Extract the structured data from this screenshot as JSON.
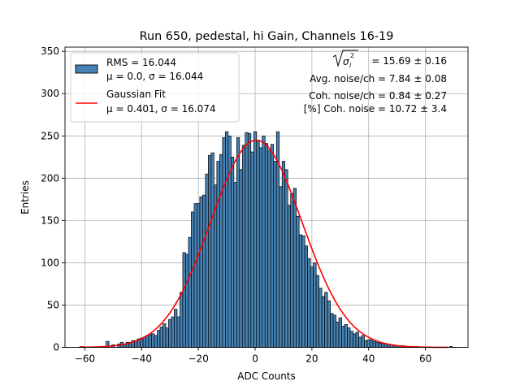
{
  "chart_data": {
    "type": "bar",
    "title": "Run 650, pedestal, hi Gain, Channels 16-19",
    "xlabel": "ADC Counts",
    "ylabel": "Entries",
    "xlim": [
      -67,
      75
    ],
    "ylim": [
      0,
      355
    ],
    "grid": true,
    "bin_width": 1,
    "x_ticks": [
      -60,
      -40,
      -20,
      0,
      20,
      40,
      60
    ],
    "y_ticks": [
      0,
      50,
      100,
      150,
      200,
      250,
      300,
      350
    ],
    "colors": {
      "bars": "#4682b4",
      "bar_edge": "#000000",
      "fit": "#ff0000"
    },
    "histogram": {
      "bin_centers": [
        -61,
        -52,
        -50,
        -48,
        -47,
        -46,
        -45,
        -44,
        -43,
        -42,
        -41,
        -40,
        -39,
        -38,
        -37,
        -36,
        -35,
        -34,
        -33,
        -32,
        -31,
        -30,
        -29,
        -28,
        -27,
        -26,
        -25,
        -24,
        -23,
        -22,
        -21,
        -20,
        -19,
        -18,
        -17,
        -16,
        -15,
        -14,
        -13,
        -12,
        -11,
        -10,
        -9,
        -8,
        -7,
        -6,
        -5,
        -4,
        -3,
        -2,
        -1,
        0,
        1,
        2,
        3,
        4,
        5,
        6,
        7,
        8,
        9,
        10,
        11,
        12,
        13,
        14,
        15,
        16,
        17,
        18,
        19,
        20,
        21,
        22,
        23,
        24,
        25,
        26,
        27,
        28,
        29,
        30,
        31,
        32,
        33,
        34,
        35,
        36,
        37,
        38,
        39,
        40,
        41,
        42,
        43,
        44,
        45,
        46,
        47,
        48,
        49,
        50,
        51,
        52,
        53,
        54,
        55,
        56,
        57,
        69
      ],
      "entries": [
        1,
        7,
        3,
        4,
        6,
        4,
        6,
        6,
        8,
        8,
        10,
        11,
        12,
        14,
        15,
        16,
        14,
        20,
        24,
        28,
        23,
        33,
        36,
        45,
        36,
        65,
        112,
        110,
        130,
        160,
        170,
        170,
        178,
        180,
        205,
        227,
        230,
        192,
        220,
        228,
        248,
        255,
        250,
        225,
        195,
        248,
        210,
        239,
        254,
        253,
        231,
        255,
        245,
        236,
        250,
        241,
        233,
        240,
        220,
        255,
        190,
        220,
        210,
        168,
        182,
        188,
        155,
        133,
        132,
        120,
        105,
        95,
        100,
        85,
        70,
        60,
        65,
        55,
        40,
        38,
        30,
        35,
        25,
        27,
        23,
        19,
        16,
        18,
        12,
        14,
        8,
        9,
        9,
        7,
        6,
        5,
        5,
        4,
        4,
        3,
        3,
        2,
        2,
        2,
        1,
        1,
        1,
        1,
        1,
        1
      ]
    },
    "gaussian_fit": {
      "mu": 0.401,
      "sigma": 16.074,
      "amplitude": 245
    },
    "legend": {
      "position": "top-left",
      "entries": [
        {
          "line1": "RMS = 16.044",
          "line2": "μ = 0.0, σ = 16.044",
          "symbol": "bar"
        },
        {
          "line1": "Gaussian Fit",
          "line2": "μ = 0.401, σ = 16.074",
          "symbol": "line"
        }
      ]
    },
    "annotations": [
      "= 15.69 ± 0.16",
      "Avg. noise/ch = 7.84 ± 0.08",
      "Coh. noise/ch = 0.84 ± 0.27",
      "[%] Coh. noise = 10.72 ± 3.4"
    ],
    "annotation_prefix": {
      "sigma": "σ",
      "sub": "i",
      "sup": "2"
    }
  }
}
